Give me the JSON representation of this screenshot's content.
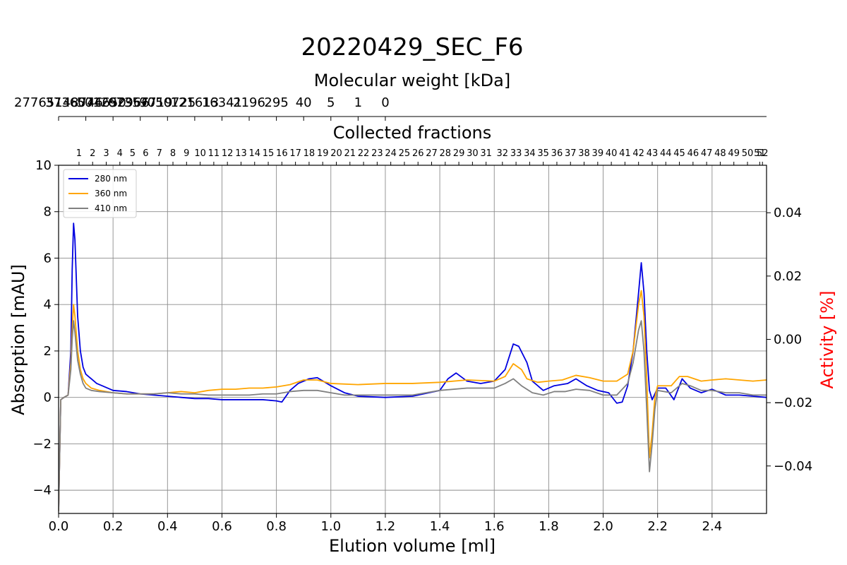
{
  "chart_data": {
    "type": "line",
    "title": "20220429_SEC_F6",
    "xlabel": "Elution volume [ml]",
    "ylabel": "Absorption [mAU]",
    "y2label": "Activity [%]",
    "top_axis_label": "Molecular weight [kDa]",
    "fraction_axis_label": "Collected fractions",
    "xlim": [
      0.0,
      2.6
    ],
    "ylim": [
      -5,
      10
    ],
    "y2lim": [
      -0.055,
      0.055
    ],
    "grid": true,
    "legend_position": "top-left",
    "x_ticks": [
      0.0,
      0.2,
      0.4,
      0.6,
      0.8,
      1.0,
      1.2,
      1.4,
      1.6,
      1.8,
      2.0,
      2.2,
      2.4
    ],
    "x_tick_labels": [
      "0.0",
      "0.2",
      "0.4",
      "0.6",
      "0.8",
      "1.0",
      "1.2",
      "1.4",
      "1.6",
      "1.8",
      "2.0",
      "2.2",
      "2.4"
    ],
    "y_ticks": [
      -4,
      -2,
      0,
      2,
      4,
      6,
      8,
      10
    ],
    "y_tick_labels": [
      "−4",
      "−2",
      "0",
      "2",
      "4",
      "6",
      "8",
      "10"
    ],
    "y2_ticks": [
      -0.04,
      -0.02,
      0.0,
      0.02,
      0.04
    ],
    "y2_tick_labels": [
      "−0.04",
      "−0.02",
      "0.00",
      "0.02",
      "0.04"
    ],
    "mw_ticks": [
      {
        "x": 0.0,
        "label": "27765148746"
      },
      {
        "x": 0.1,
        "label": "3736074650"
      },
      {
        "x": 0.2,
        "label": "501292966"
      },
      {
        "x": 0.3,
        "label": "67357719"
      },
      {
        "x": 0.4,
        "label": "9050725"
      },
      {
        "x": 0.5,
        "label": "121613"
      },
      {
        "x": 0.6,
        "label": "16341"
      },
      {
        "x": 0.7,
        "label": "2196"
      },
      {
        "x": 0.8,
        "label": "295"
      },
      {
        "x": 0.9,
        "label": "40"
      },
      {
        "x": 1.0,
        "label": "5"
      },
      {
        "x": 1.1,
        "label": "1"
      },
      {
        "x": 1.2,
        "label": "0"
      }
    ],
    "fraction_ticks": {
      "labels": [
        "1",
        "2",
        "3",
        "4",
        "5",
        "6",
        "7",
        "8",
        "9",
        "10",
        "11",
        "12",
        "13",
        "14",
        "15",
        "16",
        "17",
        "18",
        "19",
        "20",
        "21",
        "22",
        "23",
        "24",
        "25",
        "26",
        "27",
        "28",
        "29",
        "30",
        "31",
        "32",
        "33",
        "34",
        "35",
        "36",
        "37",
        "38",
        "39",
        "40",
        "41",
        "42",
        "43",
        "44",
        "45",
        "46",
        "47",
        "48",
        "49",
        "50",
        "51",
        "52"
      ],
      "positions": [
        0.075,
        0.125,
        0.175,
        0.225,
        0.272,
        0.32,
        0.37,
        0.42,
        0.47,
        0.52,
        0.57,
        0.62,
        0.67,
        0.72,
        0.77,
        0.82,
        0.87,
        0.92,
        0.97,
        1.02,
        1.07,
        1.12,
        1.17,
        1.22,
        1.27,
        1.32,
        1.37,
        1.42,
        1.47,
        1.52,
        1.57,
        1.63,
        1.68,
        1.73,
        1.78,
        1.83,
        1.88,
        1.93,
        1.98,
        2.03,
        2.08,
        2.13,
        2.18,
        2.23,
        2.28,
        2.33,
        2.38,
        2.43,
        2.48,
        2.53,
        2.575,
        2.585
      ]
    },
    "series": [
      {
        "name": "280 nm",
        "color": "#0000e0",
        "points": [
          [
            0,
            -4.9
          ],
          [
            0.008,
            -0.1
          ],
          [
            0.02,
            0.0
          ],
          [
            0.035,
            0.1
          ],
          [
            0.045,
            2.0
          ],
          [
            0.05,
            5.5
          ],
          [
            0.055,
            7.5
          ],
          [
            0.06,
            6.8
          ],
          [
            0.07,
            3.5
          ],
          [
            0.08,
            2.0
          ],
          [
            0.09,
            1.3
          ],
          [
            0.1,
            1.0
          ],
          [
            0.12,
            0.8
          ],
          [
            0.14,
            0.6
          ],
          [
            0.16,
            0.5
          ],
          [
            0.2,
            0.3
          ],
          [
            0.25,
            0.25
          ],
          [
            0.3,
            0.15
          ],
          [
            0.35,
            0.1
          ],
          [
            0.4,
            0.05
          ],
          [
            0.45,
            0.0
          ],
          [
            0.5,
            -0.05
          ],
          [
            0.55,
            -0.05
          ],
          [
            0.6,
            -0.1
          ],
          [
            0.65,
            -0.1
          ],
          [
            0.7,
            -0.1
          ],
          [
            0.75,
            -0.1
          ],
          [
            0.8,
            -0.15
          ],
          [
            0.82,
            -0.2
          ],
          [
            0.85,
            0.3
          ],
          [
            0.88,
            0.6
          ],
          [
            0.92,
            0.8
          ],
          [
            0.95,
            0.85
          ],
          [
            1.0,
            0.5
          ],
          [
            1.05,
            0.2
          ],
          [
            1.1,
            0.05
          ],
          [
            1.2,
            0.0
          ],
          [
            1.3,
            0.05
          ],
          [
            1.4,
            0.3
          ],
          [
            1.43,
            0.8
          ],
          [
            1.46,
            1.05
          ],
          [
            1.5,
            0.7
          ],
          [
            1.55,
            0.6
          ],
          [
            1.6,
            0.7
          ],
          [
            1.64,
            1.2
          ],
          [
            1.67,
            2.3
          ],
          [
            1.69,
            2.2
          ],
          [
            1.72,
            1.5
          ],
          [
            1.74,
            0.7
          ],
          [
            1.78,
            0.3
          ],
          [
            1.82,
            0.5
          ],
          [
            1.87,
            0.6
          ],
          [
            1.9,
            0.8
          ],
          [
            1.94,
            0.5
          ],
          [
            1.98,
            0.3
          ],
          [
            2.02,
            0.2
          ],
          [
            2.05,
            -0.25
          ],
          [
            2.07,
            -0.2
          ],
          [
            2.09,
            0.5
          ],
          [
            2.11,
            2.0
          ],
          [
            2.13,
            4.5
          ],
          [
            2.14,
            5.8
          ],
          [
            2.15,
            4.5
          ],
          [
            2.16,
            2.0
          ],
          [
            2.17,
            0.3
          ],
          [
            2.18,
            -0.1
          ],
          [
            2.2,
            0.4
          ],
          [
            2.23,
            0.4
          ],
          [
            2.26,
            -0.1
          ],
          [
            2.29,
            0.8
          ],
          [
            2.32,
            0.4
          ],
          [
            2.36,
            0.2
          ],
          [
            2.4,
            0.35
          ],
          [
            2.45,
            0.1
          ],
          [
            2.5,
            0.1
          ],
          [
            2.55,
            0.05
          ],
          [
            2.6,
            0.0
          ]
        ]
      },
      {
        "name": "360 nm",
        "color": "#ffa500",
        "points": [
          [
            0,
            -4.9
          ],
          [
            0.008,
            -0.1
          ],
          [
            0.02,
            0.0
          ],
          [
            0.035,
            0.1
          ],
          [
            0.045,
            1.5
          ],
          [
            0.05,
            3.0
          ],
          [
            0.055,
            4.0
          ],
          [
            0.06,
            3.5
          ],
          [
            0.07,
            2.0
          ],
          [
            0.08,
            1.2
          ],
          [
            0.09,
            0.8
          ],
          [
            0.1,
            0.6
          ],
          [
            0.12,
            0.4
          ],
          [
            0.15,
            0.3
          ],
          [
            0.2,
            0.2
          ],
          [
            0.25,
            0.15
          ],
          [
            0.3,
            0.15
          ],
          [
            0.35,
            0.15
          ],
          [
            0.4,
            0.2
          ],
          [
            0.45,
            0.25
          ],
          [
            0.5,
            0.2
          ],
          [
            0.55,
            0.3
          ],
          [
            0.6,
            0.35
          ],
          [
            0.65,
            0.35
          ],
          [
            0.7,
            0.4
          ],
          [
            0.75,
            0.4
          ],
          [
            0.8,
            0.45
          ],
          [
            0.85,
            0.55
          ],
          [
            0.9,
            0.75
          ],
          [
            0.95,
            0.75
          ],
          [
            1.0,
            0.6
          ],
          [
            1.1,
            0.55
          ],
          [
            1.2,
            0.6
          ],
          [
            1.3,
            0.6
          ],
          [
            1.4,
            0.65
          ],
          [
            1.5,
            0.75
          ],
          [
            1.6,
            0.7
          ],
          [
            1.64,
            0.9
          ],
          [
            1.67,
            1.45
          ],
          [
            1.7,
            1.2
          ],
          [
            1.72,
            0.8
          ],
          [
            1.76,
            0.65
          ],
          [
            1.8,
            0.7
          ],
          [
            1.85,
            0.75
          ],
          [
            1.9,
            0.95
          ],
          [
            1.95,
            0.85
          ],
          [
            2.0,
            0.7
          ],
          [
            2.05,
            0.7
          ],
          [
            2.09,
            1.0
          ],
          [
            2.11,
            2.0
          ],
          [
            2.13,
            4.0
          ],
          [
            2.14,
            4.6
          ],
          [
            2.15,
            3.5
          ],
          [
            2.16,
            0.8
          ],
          [
            2.17,
            -2.6
          ],
          [
            2.18,
            -1.5
          ],
          [
            2.19,
            0.0
          ],
          [
            2.2,
            0.5
          ],
          [
            2.25,
            0.5
          ],
          [
            2.28,
            0.9
          ],
          [
            2.31,
            0.9
          ],
          [
            2.36,
            0.7
          ],
          [
            2.4,
            0.75
          ],
          [
            2.45,
            0.8
          ],
          [
            2.5,
            0.75
          ],
          [
            2.55,
            0.7
          ],
          [
            2.6,
            0.75
          ]
        ]
      },
      {
        "name": "410 nm",
        "color": "#808080",
        "points": [
          [
            0,
            -4.9
          ],
          [
            0.008,
            -0.1
          ],
          [
            0.02,
            0.0
          ],
          [
            0.035,
            0.1
          ],
          [
            0.045,
            1.2
          ],
          [
            0.05,
            2.5
          ],
          [
            0.055,
            3.3
          ],
          [
            0.06,
            2.8
          ],
          [
            0.07,
            1.6
          ],
          [
            0.08,
            1.0
          ],
          [
            0.09,
            0.6
          ],
          [
            0.1,
            0.4
          ],
          [
            0.12,
            0.3
          ],
          [
            0.15,
            0.25
          ],
          [
            0.2,
            0.2
          ],
          [
            0.25,
            0.15
          ],
          [
            0.3,
            0.15
          ],
          [
            0.35,
            0.15
          ],
          [
            0.4,
            0.2
          ],
          [
            0.45,
            0.15
          ],
          [
            0.5,
            0.15
          ],
          [
            0.55,
            0.1
          ],
          [
            0.6,
            0.1
          ],
          [
            0.65,
            0.1
          ],
          [
            0.7,
            0.1
          ],
          [
            0.75,
            0.15
          ],
          [
            0.8,
            0.15
          ],
          [
            0.85,
            0.25
          ],
          [
            0.9,
            0.3
          ],
          [
            0.95,
            0.3
          ],
          [
            1.0,
            0.2
          ],
          [
            1.05,
            0.1
          ],
          [
            1.1,
            0.1
          ],
          [
            1.2,
            0.1
          ],
          [
            1.3,
            0.1
          ],
          [
            1.4,
            0.3
          ],
          [
            1.5,
            0.4
          ],
          [
            1.6,
            0.4
          ],
          [
            1.64,
            0.6
          ],
          [
            1.67,
            0.8
          ],
          [
            1.7,
            0.5
          ],
          [
            1.74,
            0.2
          ],
          [
            1.78,
            0.1
          ],
          [
            1.82,
            0.25
          ],
          [
            1.86,
            0.25
          ],
          [
            1.9,
            0.35
          ],
          [
            1.95,
            0.3
          ],
          [
            2.0,
            0.1
          ],
          [
            2.05,
            0.1
          ],
          [
            2.09,
            0.6
          ],
          [
            2.11,
            1.5
          ],
          [
            2.13,
            2.9
          ],
          [
            2.14,
            3.3
          ],
          [
            2.15,
            2.0
          ],
          [
            2.16,
            -0.5
          ],
          [
            2.17,
            -3.2
          ],
          [
            2.18,
            -2.0
          ],
          [
            2.19,
            -0.5
          ],
          [
            2.2,
            0.3
          ],
          [
            2.25,
            0.2
          ],
          [
            2.29,
            0.6
          ],
          [
            2.32,
            0.5
          ],
          [
            2.36,
            0.3
          ],
          [
            2.4,
            0.3
          ],
          [
            2.45,
            0.2
          ],
          [
            2.5,
            0.2
          ],
          [
            2.55,
            0.1
          ],
          [
            2.6,
            0.1
          ]
        ]
      }
    ]
  }
}
